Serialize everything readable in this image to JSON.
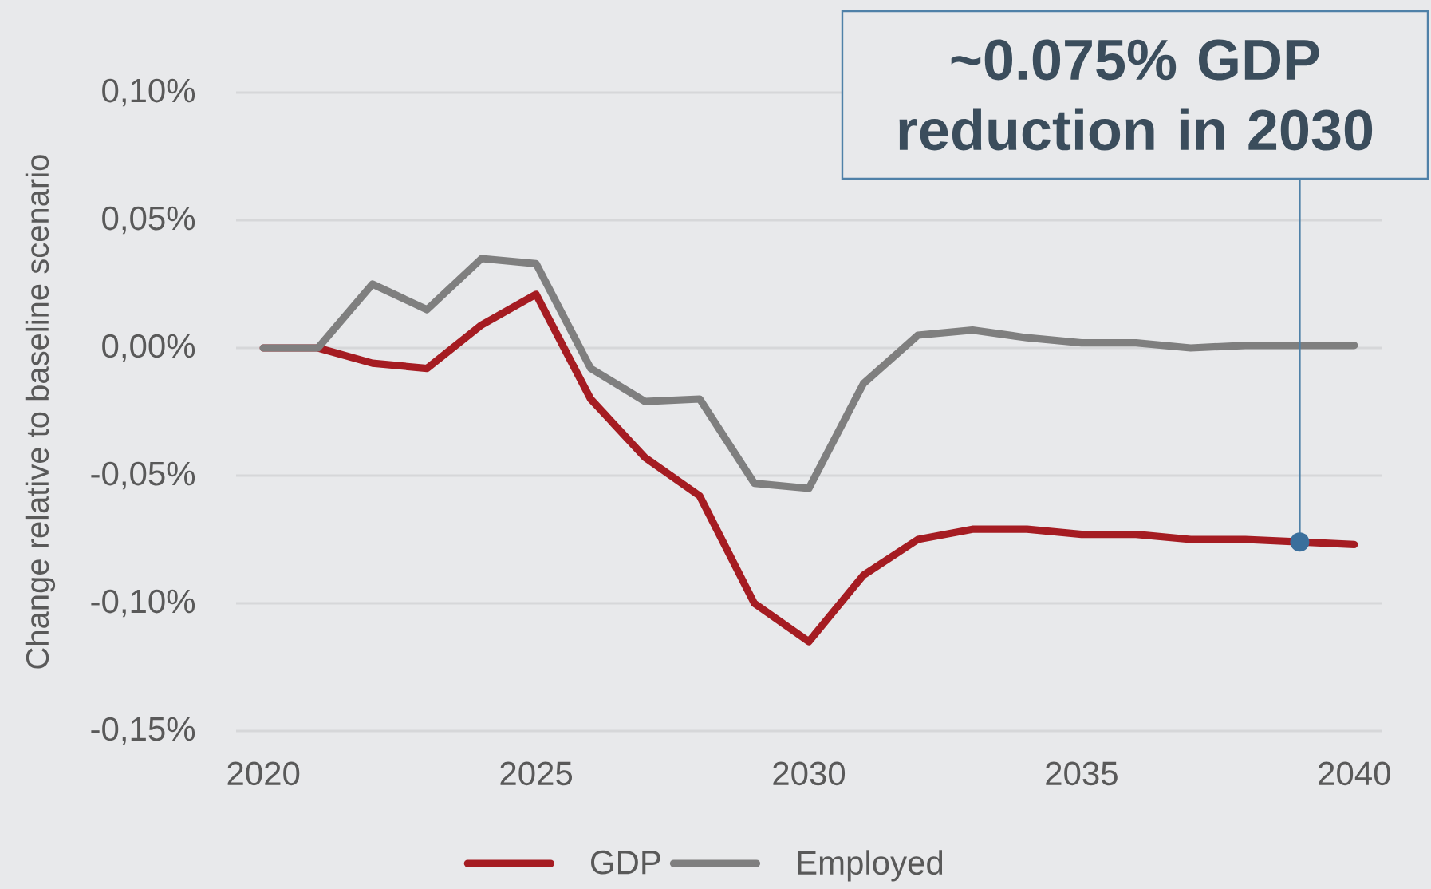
{
  "chart_data": {
    "type": "line",
    "ylabel": "Change relative to baseline scenario",
    "x": [
      2020,
      2021,
      2022,
      2023,
      2024,
      2025,
      2026,
      2027,
      2028,
      2029,
      2030,
      2031,
      2032,
      2033,
      2034,
      2035,
      2036,
      2037,
      2038,
      2039,
      2040
    ],
    "series": [
      {
        "name": "GDP",
        "color": "#a51c22",
        "values": [
          0,
          0,
          -0.006,
          -0.008,
          0.009,
          0.021,
          -0.02,
          -0.043,
          -0.058,
          -0.1,
          -0.115,
          -0.089,
          -0.075,
          -0.071,
          -0.071,
          -0.073,
          -0.073,
          -0.075,
          -0.075,
          -0.076,
          -0.077
        ]
      },
      {
        "name": "Employed",
        "color": "#7f7f7f",
        "values": [
          0,
          0,
          0.025,
          0.015,
          0.035,
          0.033,
          -0.008,
          -0.021,
          -0.02,
          -0.053,
          -0.055,
          -0.014,
          0.005,
          0.007,
          0.004,
          0.002,
          0.002,
          0,
          0.001,
          0.001,
          0.001
        ]
      }
    ],
    "xlim": [
      2019.5,
      2040.5
    ],
    "xticks": [
      2020,
      2025,
      2030,
      2035,
      2040
    ],
    "ylim": [
      -0.15,
      0.1
    ],
    "yticks": [
      {
        "value": -0.15,
        "label": "-0,15%"
      },
      {
        "value": -0.1,
        "label": "-0,10%"
      },
      {
        "value": -0.05,
        "label": "-0,05%"
      },
      {
        "value": 0,
        "label": "0,00%"
      },
      {
        "value": 0.05,
        "label": "0,05%"
      },
      {
        "value": 0.1,
        "label": "0,10%"
      }
    ],
    "grid": "y",
    "legend": "bottom",
    "annotations": [
      {
        "text": "~0.075% GDP reduction in 2030",
        "x": 2039,
        "y": -0.076
      }
    ]
  }
}
